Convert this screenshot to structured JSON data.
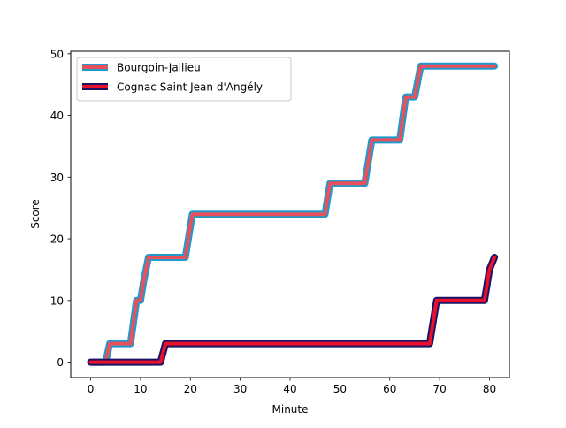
{
  "chart_data": {
    "type": "line",
    "title": "",
    "xlabel": "Minute",
    "ylabel": "Score",
    "xlim": [
      -4,
      84
    ],
    "ylim": [
      -2.5,
      50.4
    ],
    "xticks": [
      0,
      10,
      20,
      30,
      40,
      50,
      60,
      70,
      80
    ],
    "yticks": [
      0,
      10,
      20,
      30,
      40,
      50
    ],
    "grid": false,
    "legend": "upper-left",
    "series": [
      {
        "name": "Bourgoin-Jallieu",
        "color": "#1f9bcf",
        "inner_color": "#e8505b",
        "x": [
          0,
          3,
          3.8,
          8,
          9.2,
          10,
          10.6,
          11.6,
          19,
          20.4,
          47,
          48,
          55,
          56.4,
          62,
          63.2,
          65,
          66.2,
          81
        ],
        "y": [
          0,
          0,
          3,
          3,
          10,
          10,
          13,
          17,
          17,
          24,
          24,
          29,
          29,
          36,
          36,
          43,
          43,
          48,
          48
        ]
      },
      {
        "name": "Cognac Saint Jean d'Angély",
        "color": "#1b1464",
        "inner_color": "#e8102b",
        "x": [
          0,
          14,
          15,
          68,
          69.4,
          79,
          80,
          81
        ],
        "y": [
          0,
          0,
          3,
          3,
          10,
          10,
          15,
          17
        ]
      }
    ]
  }
}
